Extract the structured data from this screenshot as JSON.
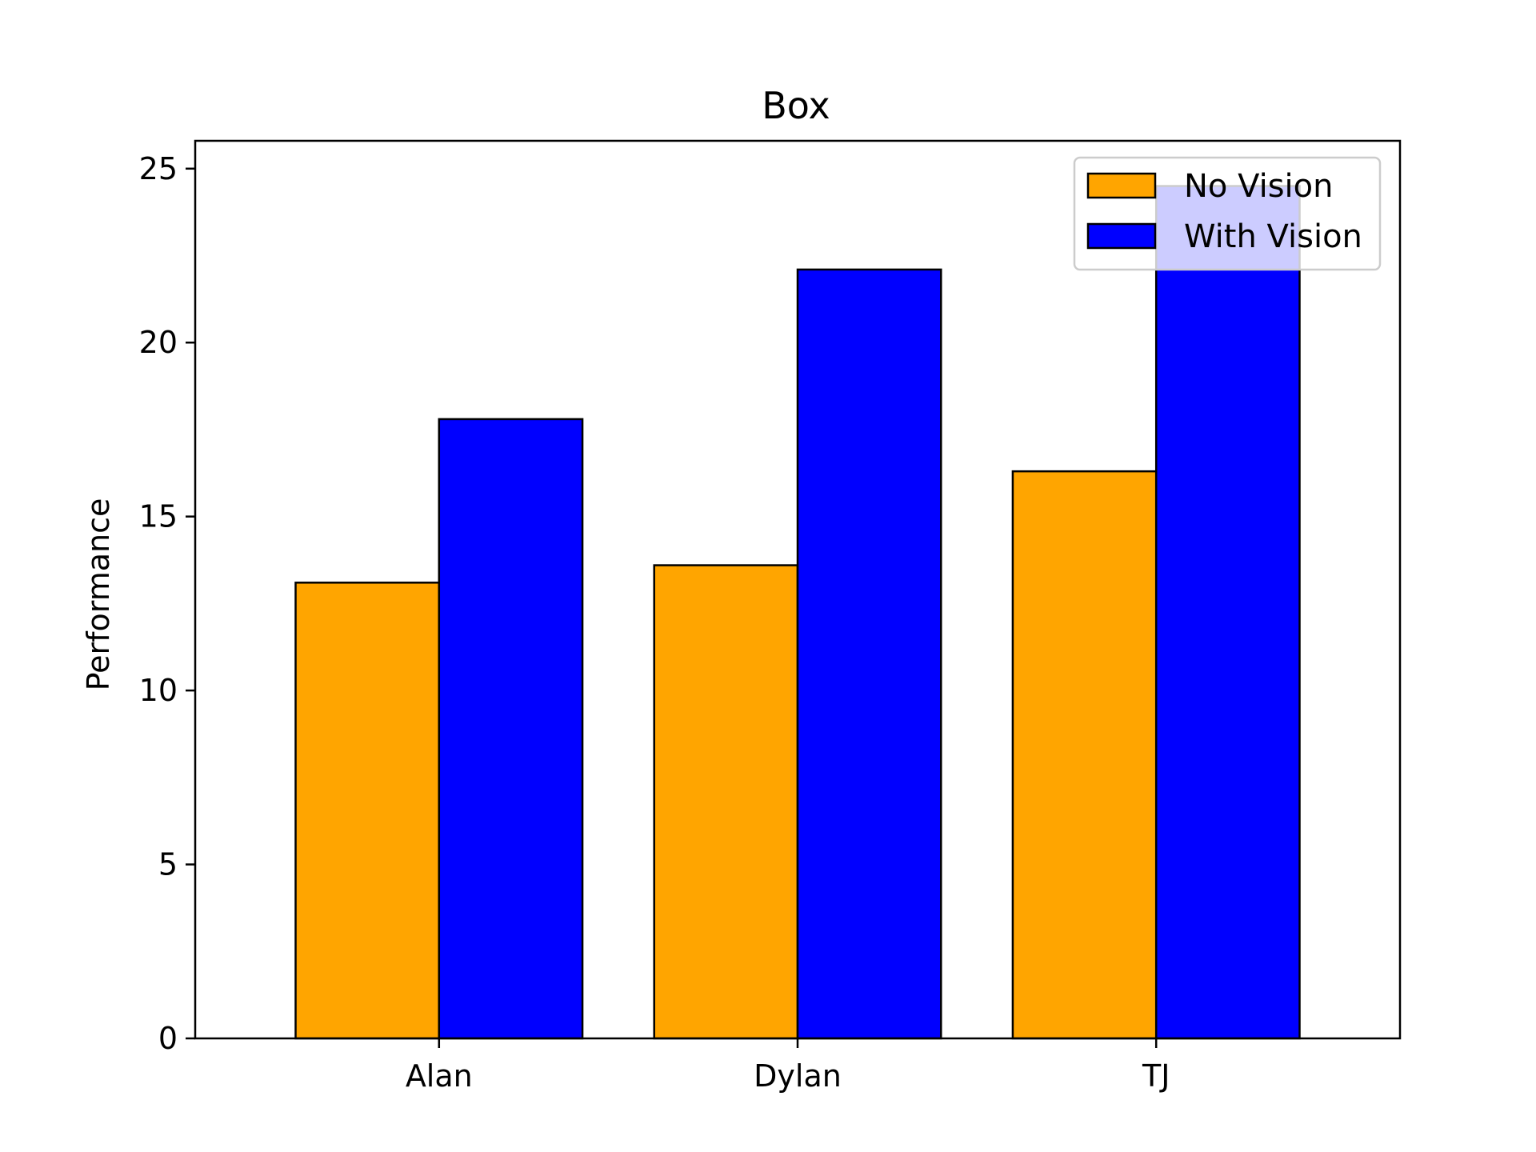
{
  "chart_data": {
    "type": "bar",
    "title": "Box",
    "xlabel": "",
    "ylabel": "Performance",
    "categories": [
      "Alan",
      "Dylan",
      "TJ"
    ],
    "series": [
      {
        "name": "No Vision",
        "color": "#FFA500",
        "values": [
          13.1,
          13.6,
          16.3
        ]
      },
      {
        "name": "With Vision",
        "color": "#0000FF",
        "values": [
          17.8,
          22.1,
          24.5
        ]
      }
    ],
    "ylim": [
      0,
      25.8
    ],
    "yticks": [
      0,
      5,
      10,
      15,
      20,
      25
    ],
    "grid": false,
    "legend_position": "top-right"
  }
}
